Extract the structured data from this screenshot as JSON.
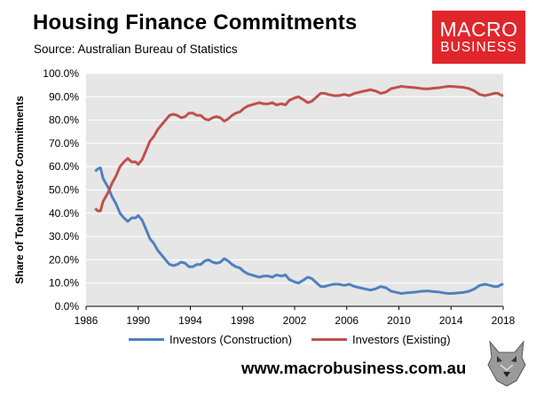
{
  "header": {
    "title": "Housing Finance Commitments",
    "subtitle": "Source: Australian Bureau of Statistics"
  },
  "logo": {
    "line1": "MACRO",
    "line2": "BUSINESS",
    "color": "#e0262b"
  },
  "footer": {
    "url": "www.macrobusiness.com.au"
  },
  "chart_data": {
    "type": "line",
    "title": "Housing Finance Commitments",
    "ylabel": "Share of Total Investor Commitments",
    "xlabel": "",
    "xlim": [
      1986,
      2018
    ],
    "ylim": [
      0,
      100
    ],
    "x_ticks": [
      "1986",
      "1990",
      "1994",
      "1998",
      "2002",
      "2006",
      "2010",
      "2014",
      "2018"
    ],
    "y_ticks": [
      "0.0%",
      "10.0%",
      "20.0%",
      "30.0%",
      "40.0%",
      "50.0%",
      "60.0%",
      "70.0%",
      "80.0%",
      "90.0%",
      "100.0%"
    ],
    "grid": "horizontal",
    "legend_position": "bottom",
    "series": [
      {
        "name": "Investors (Construction)",
        "color": "#4f81bd",
        "points": [
          [
            1986.7,
            58
          ],
          [
            1986.9,
            59
          ],
          [
            1987.1,
            59.5
          ],
          [
            1987.3,
            55
          ],
          [
            1987.5,
            53
          ],
          [
            1987.7,
            51
          ],
          [
            1988.0,
            47
          ],
          [
            1988.3,
            44
          ],
          [
            1988.6,
            40
          ],
          [
            1988.9,
            38
          ],
          [
            1989.2,
            36.5
          ],
          [
            1989.5,
            38
          ],
          [
            1989.8,
            38
          ],
          [
            1990.0,
            39
          ],
          [
            1990.3,
            37
          ],
          [
            1990.6,
            33
          ],
          [
            1990.9,
            29
          ],
          [
            1991.2,
            27
          ],
          [
            1991.5,
            24
          ],
          [
            1991.8,
            22
          ],
          [
            1992.1,
            20
          ],
          [
            1992.4,
            18
          ],
          [
            1992.7,
            17.5
          ],
          [
            1993.0,
            18
          ],
          [
            1993.3,
            19
          ],
          [
            1993.6,
            18.5
          ],
          [
            1993.9,
            17
          ],
          [
            1994.2,
            17
          ],
          [
            1994.5,
            18
          ],
          [
            1994.8,
            18
          ],
          [
            1995.1,
            19.5
          ],
          [
            1995.4,
            20
          ],
          [
            1995.7,
            19
          ],
          [
            1996.0,
            18.5
          ],
          [
            1996.3,
            19
          ],
          [
            1996.6,
            20.5
          ],
          [
            1996.9,
            19.5
          ],
          [
            1997.2,
            18
          ],
          [
            1997.5,
            17
          ],
          [
            1997.8,
            16.5
          ],
          [
            1998.1,
            15
          ],
          [
            1998.4,
            14
          ],
          [
            1998.7,
            13.5
          ],
          [
            1999.0,
            13
          ],
          [
            1999.3,
            12.5
          ],
          [
            1999.6,
            13
          ],
          [
            2000.0,
            13
          ],
          [
            2000.3,
            12.5
          ],
          [
            2000.6,
            13.5
          ],
          [
            2001.0,
            13
          ],
          [
            2001.3,
            13.5
          ],
          [
            2001.6,
            11.5
          ],
          [
            2002.0,
            10.5
          ],
          [
            2002.3,
            10
          ],
          [
            2002.6,
            11
          ],
          [
            2003.0,
            12.5
          ],
          [
            2003.3,
            12
          ],
          [
            2003.6,
            10.5
          ],
          [
            2004.0,
            8.5
          ],
          [
            2004.3,
            8.5
          ],
          [
            2004.6,
            9
          ],
          [
            2005.0,
            9.5
          ],
          [
            2005.4,
            9.5
          ],
          [
            2005.8,
            9
          ],
          [
            2006.2,
            9.5
          ],
          [
            2006.6,
            8.5
          ],
          [
            2007.0,
            8
          ],
          [
            2007.4,
            7.5
          ],
          [
            2007.8,
            7
          ],
          [
            2008.2,
            7.5
          ],
          [
            2008.6,
            8.5
          ],
          [
            2009.0,
            8
          ],
          [
            2009.4,
            6.5
          ],
          [
            2009.8,
            6
          ],
          [
            2010.2,
            5.5
          ],
          [
            2010.6,
            5.8
          ],
          [
            2011.0,
            6
          ],
          [
            2011.4,
            6.2
          ],
          [
            2011.8,
            6.5
          ],
          [
            2012.2,
            6.6
          ],
          [
            2012.6,
            6.4
          ],
          [
            2013.0,
            6.2
          ],
          [
            2013.4,
            5.8
          ],
          [
            2013.8,
            5.5
          ],
          [
            2014.2,
            5.6
          ],
          [
            2014.6,
            5.8
          ],
          [
            2015.0,
            6
          ],
          [
            2015.4,
            6.5
          ],
          [
            2015.8,
            7.5
          ],
          [
            2016.2,
            9
          ],
          [
            2016.6,
            9.5
          ],
          [
            2017.0,
            9
          ],
          [
            2017.3,
            8.5
          ],
          [
            2017.6,
            8.5
          ],
          [
            2017.9,
            9.5
          ],
          [
            2018.0,
            9.2
          ]
        ]
      },
      {
        "name": "Investors (Existing)",
        "color": "#c0504d",
        "points": [
          [
            1986.7,
            42
          ],
          [
            1986.9,
            41
          ],
          [
            1987.1,
            41
          ],
          [
            1987.3,
            45
          ],
          [
            1987.5,
            47
          ],
          [
            1987.7,
            49
          ],
          [
            1988.0,
            53
          ],
          [
            1988.3,
            56
          ],
          [
            1988.6,
            60
          ],
          [
            1988.9,
            62
          ],
          [
            1989.2,
            63.5
          ],
          [
            1989.5,
            62
          ],
          [
            1989.8,
            62
          ],
          [
            1990.0,
            61
          ],
          [
            1990.3,
            63
          ],
          [
            1990.6,
            67
          ],
          [
            1990.9,
            71
          ],
          [
            1991.2,
            73
          ],
          [
            1991.5,
            76
          ],
          [
            1991.8,
            78
          ],
          [
            1992.1,
            80
          ],
          [
            1992.4,
            82
          ],
          [
            1992.7,
            82.5
          ],
          [
            1993.0,
            82
          ],
          [
            1993.3,
            81
          ],
          [
            1993.6,
            81.5
          ],
          [
            1993.9,
            83
          ],
          [
            1994.2,
            83
          ],
          [
            1994.5,
            82
          ],
          [
            1994.8,
            82
          ],
          [
            1995.1,
            80.5
          ],
          [
            1995.4,
            80
          ],
          [
            1995.7,
            81
          ],
          [
            1996.0,
            81.5
          ],
          [
            1996.3,
            81
          ],
          [
            1996.6,
            79.5
          ],
          [
            1996.9,
            80.5
          ],
          [
            1997.2,
            82
          ],
          [
            1997.5,
            83
          ],
          [
            1997.8,
            83.5
          ],
          [
            1998.1,
            85
          ],
          [
            1998.4,
            86
          ],
          [
            1998.7,
            86.5
          ],
          [
            1999.0,
            87
          ],
          [
            1999.3,
            87.5
          ],
          [
            1999.6,
            87
          ],
          [
            2000.0,
            87
          ],
          [
            2000.3,
            87.5
          ],
          [
            2000.6,
            86.5
          ],
          [
            2001.0,
            87
          ],
          [
            2001.3,
            86.5
          ],
          [
            2001.6,
            88.5
          ],
          [
            2002.0,
            89.5
          ],
          [
            2002.3,
            90
          ],
          [
            2002.6,
            89
          ],
          [
            2003.0,
            87.5
          ],
          [
            2003.3,
            88
          ],
          [
            2003.6,
            89.5
          ],
          [
            2004.0,
            91.5
          ],
          [
            2004.3,
            91.5
          ],
          [
            2004.6,
            91
          ],
          [
            2005.0,
            90.5
          ],
          [
            2005.4,
            90.5
          ],
          [
            2005.8,
            91
          ],
          [
            2006.2,
            90.5
          ],
          [
            2006.6,
            91.5
          ],
          [
            2007.0,
            92
          ],
          [
            2007.4,
            92.5
          ],
          [
            2007.8,
            93
          ],
          [
            2008.2,
            92.5
          ],
          [
            2008.6,
            91.5
          ],
          [
            2009.0,
            92
          ],
          [
            2009.4,
            93.5
          ],
          [
            2009.8,
            94
          ],
          [
            2010.2,
            94.5
          ],
          [
            2010.6,
            94.2
          ],
          [
            2011.0,
            94
          ],
          [
            2011.4,
            93.8
          ],
          [
            2011.8,
            93.5
          ],
          [
            2012.2,
            93.4
          ],
          [
            2012.6,
            93.6
          ],
          [
            2013.0,
            93.8
          ],
          [
            2013.4,
            94.2
          ],
          [
            2013.8,
            94.5
          ],
          [
            2014.2,
            94.4
          ],
          [
            2014.6,
            94.2
          ],
          [
            2015.0,
            94
          ],
          [
            2015.4,
            93.5
          ],
          [
            2015.8,
            92.5
          ],
          [
            2016.2,
            91
          ],
          [
            2016.6,
            90.5
          ],
          [
            2017.0,
            91
          ],
          [
            2017.3,
            91.5
          ],
          [
            2017.6,
            91.5
          ],
          [
            2017.9,
            90.5
          ],
          [
            2018.0,
            90.8
          ]
        ]
      }
    ]
  }
}
